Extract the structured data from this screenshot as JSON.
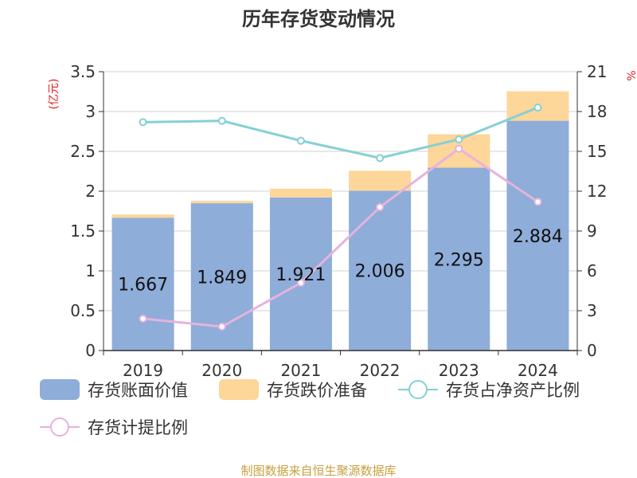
{
  "chart_data": {
    "type": "bar",
    "title": "历年存货变动情况",
    "ylabel": "(亿元)",
    "ylabel_right": "%",
    "categories": [
      "2019",
      "2020",
      "2021",
      "2022",
      "2023",
      "2024"
    ],
    "ylim": [
      0,
      3.5
    ],
    "ylim_right": [
      0,
      21
    ],
    "yticks": [
      "0",
      "0.5",
      "1",
      "1.5",
      "2",
      "2.5",
      "3",
      "3.5"
    ],
    "yticks_right": [
      "0",
      "3",
      "6",
      "9",
      "12",
      "15",
      "18",
      "21"
    ],
    "grid": true,
    "legend_position": "bottom",
    "series": [
      {
        "name": "存货账面价值",
        "type": "bar",
        "stack": "total",
        "color": "#8eadd9",
        "values": [
          1.667,
          1.849,
          1.921,
          2.006,
          2.295,
          2.884
        ],
        "labels": [
          "1.667",
          "1.849",
          "1.921",
          "2.006",
          "2.295",
          "2.884"
        ]
      },
      {
        "name": "存货跌价准备",
        "type": "bar",
        "stack": "total",
        "color": "#fdd69a",
        "values": [
          0.04,
          0.03,
          0.11,
          0.25,
          0.42,
          0.37
        ]
      },
      {
        "name": "存货占净资产比例",
        "type": "line",
        "axis": "right",
        "color": "#86d0d4",
        "values": [
          17.2,
          17.3,
          15.8,
          14.5,
          15.9,
          18.3
        ]
      },
      {
        "name": "存货计提比例",
        "type": "line",
        "axis": "right",
        "color": "#e6b3dd",
        "values": [
          2.4,
          1.8,
          5.1,
          10.8,
          15.2,
          11.2
        ]
      }
    ]
  },
  "source_text": "制图数据来自恒生聚源数据库"
}
